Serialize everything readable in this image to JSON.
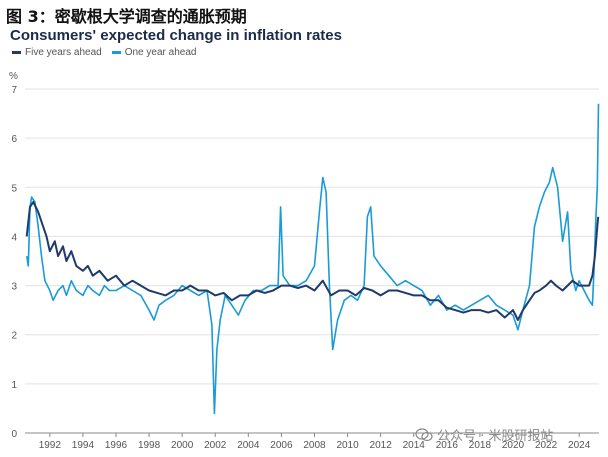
{
  "figure_title": "图 3：密歇根大学调查的通胀预期",
  "watermark": "公众号 · 米股研报站",
  "chart_data": {
    "type": "line",
    "title": "Consumers' expected change in inflation rates",
    "ylabel": "%",
    "xlim": [
      1990.5,
      2025.2
    ],
    "ylim": [
      0,
      7
    ],
    "yticks": [
      0,
      1,
      2,
      3,
      4,
      5,
      6,
      7
    ],
    "xticks": [
      "1992",
      "1994",
      "1996",
      "1998",
      "2000",
      "2002",
      "2004",
      "2006",
      "2008",
      "2010",
      "2012",
      "2014",
      "2016",
      "2018",
      "2020",
      "2022",
      "2024"
    ],
    "grid": "horizontal",
    "legend_position": "top-left",
    "series": [
      {
        "name": "Five years ahead",
        "color": "#1f3a6b",
        "points": [
          [
            1990.6,
            4.0
          ],
          [
            1990.8,
            4.6
          ],
          [
            1991.0,
            4.7
          ],
          [
            1991.3,
            4.5
          ],
          [
            1991.5,
            4.3
          ],
          [
            1991.8,
            4.0
          ],
          [
            1992.0,
            3.7
          ],
          [
            1992.3,
            3.9
          ],
          [
            1992.5,
            3.6
          ],
          [
            1992.8,
            3.8
          ],
          [
            1993.0,
            3.5
          ],
          [
            1993.3,
            3.7
          ],
          [
            1993.6,
            3.4
          ],
          [
            1994.0,
            3.3
          ],
          [
            1994.3,
            3.4
          ],
          [
            1994.6,
            3.2
          ],
          [
            1995.0,
            3.3
          ],
          [
            1995.5,
            3.1
          ],
          [
            1996.0,
            3.2
          ],
          [
            1996.5,
            3.0
          ],
          [
            1997.0,
            3.1
          ],
          [
            1997.5,
            3.0
          ],
          [
            1998.0,
            2.9
          ],
          [
            1998.5,
            2.85
          ],
          [
            1999.0,
            2.8
          ],
          [
            1999.5,
            2.9
          ],
          [
            2000.0,
            2.9
          ],
          [
            2000.5,
            3.0
          ],
          [
            2001.0,
            2.9
          ],
          [
            2001.5,
            2.9
          ],
          [
            2002.0,
            2.8
          ],
          [
            2002.5,
            2.85
          ],
          [
            2003.0,
            2.7
          ],
          [
            2003.5,
            2.8
          ],
          [
            2004.0,
            2.8
          ],
          [
            2004.5,
            2.9
          ],
          [
            2005.0,
            2.85
          ],
          [
            2005.5,
            2.9
          ],
          [
            2006.0,
            3.0
          ],
          [
            2006.5,
            3.0
          ],
          [
            2007.0,
            2.95
          ],
          [
            2007.5,
            3.0
          ],
          [
            2008.0,
            2.9
          ],
          [
            2008.5,
            3.1
          ],
          [
            2009.0,
            2.8
          ],
          [
            2009.5,
            2.9
          ],
          [
            2010.0,
            2.9
          ],
          [
            2010.5,
            2.8
          ],
          [
            2011.0,
            2.95
          ],
          [
            2011.5,
            2.9
          ],
          [
            2012.0,
            2.8
          ],
          [
            2012.5,
            2.9
          ],
          [
            2013.0,
            2.9
          ],
          [
            2013.5,
            2.85
          ],
          [
            2014.0,
            2.8
          ],
          [
            2014.5,
            2.8
          ],
          [
            2015.0,
            2.7
          ],
          [
            2015.5,
            2.7
          ],
          [
            2016.0,
            2.55
          ],
          [
            2016.5,
            2.5
          ],
          [
            2017.0,
            2.45
          ],
          [
            2017.5,
            2.5
          ],
          [
            2018.0,
            2.5
          ],
          [
            2018.5,
            2.45
          ],
          [
            2019.0,
            2.5
          ],
          [
            2019.5,
            2.35
          ],
          [
            2020.0,
            2.5
          ],
          [
            2020.3,
            2.3
          ],
          [
            2020.6,
            2.5
          ],
          [
            2021.0,
            2.7
          ],
          [
            2021.3,
            2.85
          ],
          [
            2021.6,
            2.9
          ],
          [
            2022.0,
            3.0
          ],
          [
            2022.3,
            3.1
          ],
          [
            2022.6,
            3.0
          ],
          [
            2023.0,
            2.9
          ],
          [
            2023.3,
            3.0
          ],
          [
            2023.6,
            3.1
          ],
          [
            2024.0,
            3.0
          ],
          [
            2024.3,
            3.0
          ],
          [
            2024.6,
            3.0
          ],
          [
            2024.8,
            3.2
          ],
          [
            2024.95,
            3.6
          ],
          [
            2025.1,
            4.2
          ],
          [
            2025.15,
            4.4
          ]
        ]
      },
      {
        "name": "One year ahead",
        "color": "#1a9bd7",
        "points": [
          [
            1990.6,
            3.6
          ],
          [
            1990.7,
            3.4
          ],
          [
            1990.8,
            4.6
          ],
          [
            1990.9,
            4.8
          ],
          [
            1991.1,
            4.7
          ],
          [
            1991.3,
            4.2
          ],
          [
            1991.5,
            3.6
          ],
          [
            1991.7,
            3.1
          ],
          [
            1992.0,
            2.9
          ],
          [
            1992.2,
            2.7
          ],
          [
            1992.5,
            2.9
          ],
          [
            1992.8,
            3.0
          ],
          [
            1993.0,
            2.8
          ],
          [
            1993.3,
            3.1
          ],
          [
            1993.6,
            2.9
          ],
          [
            1994.0,
            2.8
          ],
          [
            1994.3,
            3.0
          ],
          [
            1994.6,
            2.9
          ],
          [
            1995.0,
            2.8
          ],
          [
            1995.3,
            3.0
          ],
          [
            1995.6,
            2.9
          ],
          [
            1996.0,
            2.9
          ],
          [
            1996.5,
            3.0
          ],
          [
            1997.0,
            2.9
          ],
          [
            1997.5,
            2.8
          ],
          [
            1998.0,
            2.5
          ],
          [
            1998.3,
            2.3
          ],
          [
            1998.6,
            2.6
          ],
          [
            1999.0,
            2.7
          ],
          [
            1999.5,
            2.8
          ],
          [
            2000.0,
            3.0
          ],
          [
            2000.5,
            2.9
          ],
          [
            2001.0,
            2.8
          ],
          [
            2001.5,
            2.9
          ],
          [
            2001.8,
            2.2
          ],
          [
            2001.95,
            0.4
          ],
          [
            2002.1,
            1.7
          ],
          [
            2002.3,
            2.3
          ],
          [
            2002.6,
            2.8
          ],
          [
            2003.0,
            2.6
          ],
          [
            2003.4,
            2.4
          ],
          [
            2003.8,
            2.7
          ],
          [
            2004.3,
            2.9
          ],
          [
            2004.8,
            2.9
          ],
          [
            2005.3,
            3.0
          ],
          [
            2005.8,
            3.0
          ],
          [
            2005.95,
            4.6
          ],
          [
            2006.1,
            3.2
          ],
          [
            2006.5,
            3.0
          ],
          [
            2007.0,
            3.0
          ],
          [
            2007.5,
            3.1
          ],
          [
            2008.0,
            3.4
          ],
          [
            2008.3,
            4.5
          ],
          [
            2008.5,
            5.2
          ],
          [
            2008.7,
            4.9
          ],
          [
            2008.9,
            3.0
          ],
          [
            2009.1,
            1.7
          ],
          [
            2009.4,
            2.3
          ],
          [
            2009.8,
            2.7
          ],
          [
            2010.2,
            2.8
          ],
          [
            2010.6,
            2.7
          ],
          [
            2011.0,
            3.0
          ],
          [
            2011.2,
            4.4
          ],
          [
            2011.4,
            4.6
          ],
          [
            2011.6,
            3.6
          ],
          [
            2012.0,
            3.4
          ],
          [
            2012.5,
            3.2
          ],
          [
            2013.0,
            3.0
          ],
          [
            2013.5,
            3.1
          ],
          [
            2014.0,
            3.0
          ],
          [
            2014.5,
            2.9
          ],
          [
            2015.0,
            2.6
          ],
          [
            2015.5,
            2.8
          ],
          [
            2016.0,
            2.5
          ],
          [
            2016.5,
            2.6
          ],
          [
            2017.0,
            2.5
          ],
          [
            2017.5,
            2.6
          ],
          [
            2018.0,
            2.7
          ],
          [
            2018.5,
            2.8
          ],
          [
            2019.0,
            2.6
          ],
          [
            2019.5,
            2.5
          ],
          [
            2020.0,
            2.4
          ],
          [
            2020.3,
            2.1
          ],
          [
            2020.6,
            2.5
          ],
          [
            2021.0,
            3.0
          ],
          [
            2021.3,
            4.2
          ],
          [
            2021.6,
            4.6
          ],
          [
            2021.9,
            4.9
          ],
          [
            2022.2,
            5.1
          ],
          [
            2022.4,
            5.4
          ],
          [
            2022.7,
            5.0
          ],
          [
            2023.0,
            3.9
          ],
          [
            2023.3,
            4.5
          ],
          [
            2023.5,
            3.3
          ],
          [
            2023.8,
            2.9
          ],
          [
            2024.0,
            3.1
          ],
          [
            2024.3,
            2.9
          ],
          [
            2024.6,
            2.7
          ],
          [
            2024.8,
            2.6
          ],
          [
            2024.9,
            3.3
          ],
          [
            2025.0,
            4.3
          ],
          [
            2025.1,
            5.0
          ],
          [
            2025.17,
            6.7
          ]
        ]
      }
    ]
  }
}
